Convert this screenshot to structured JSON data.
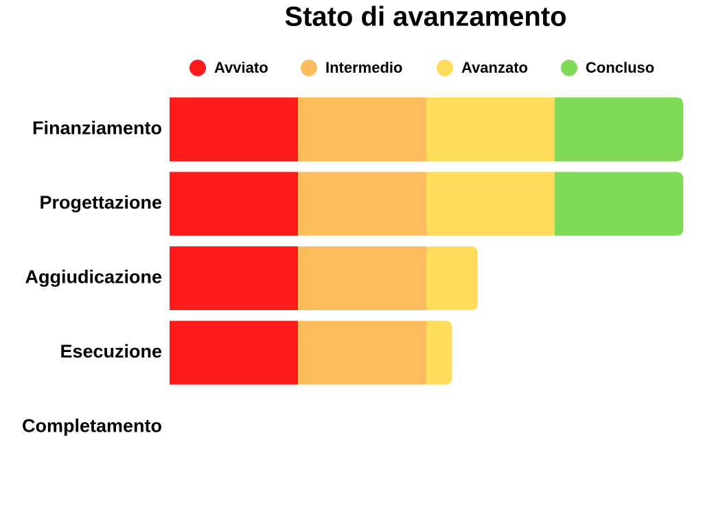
{
  "chart_data": {
    "type": "stacked-bar-horizontal",
    "title": "Stato di avanzamento",
    "categories": [
      "Finanziamento",
      "Progettazione",
      "Aggiudicazione",
      "Esecuzione",
      "Completamento"
    ],
    "series": [
      {
        "name": "Avviato",
        "color": "#fe1b1b",
        "values": [
          25,
          25,
          25,
          25,
          null
        ]
      },
      {
        "name": "Intermedio",
        "color": "#fdbd5c",
        "values": [
          25,
          25,
          25,
          25,
          null
        ]
      },
      {
        "name": "Avanzato",
        "color": "#fedc5a",
        "values": [
          25,
          25,
          10,
          5,
          null
        ]
      },
      {
        "name": "Concluso",
        "color": "#80d957",
        "values": [
          25,
          25,
          null,
          null,
          null
        ]
      }
    ],
    "xlim": [
      0,
      100
    ],
    "legend": "top"
  }
}
